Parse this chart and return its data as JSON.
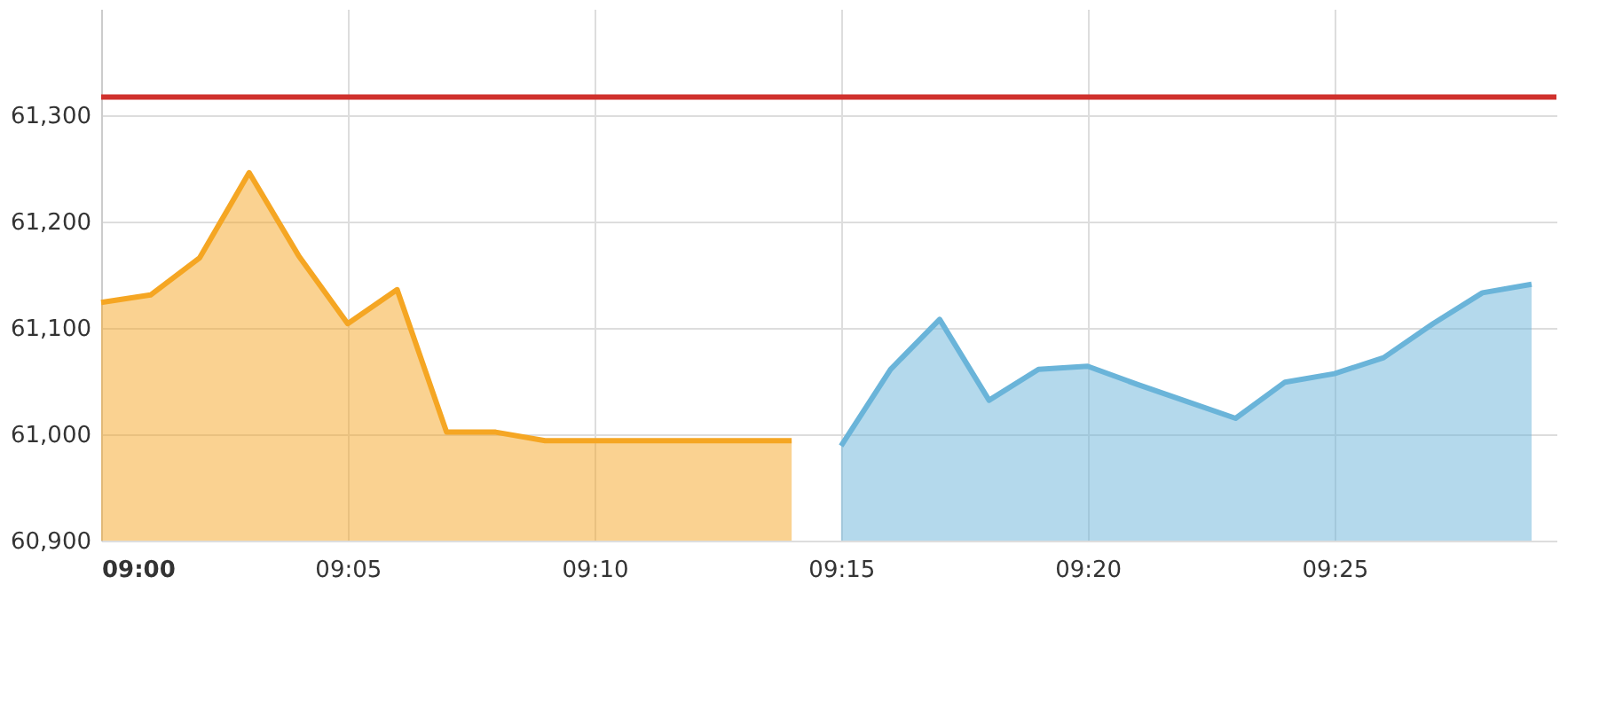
{
  "chart_data": {
    "type": "area",
    "series": [
      {
        "color": "#f5a623",
        "x": [
          9.0,
          9.0167,
          9.0333,
          9.05,
          9.0667,
          9.0833,
          9.1,
          9.1167,
          9.1333,
          9.15,
          9.1667,
          9.1833,
          9.2,
          9.2167,
          9.2333
        ],
        "values": [
          61124,
          61131,
          61166,
          61246,
          61168,
          61104,
          61136,
          61002,
          61002,
          60994,
          60994,
          60994,
          60994,
          60994,
          60994
        ]
      },
      {
        "color": "#6ab4d9",
        "x": [
          9.25,
          9.2667,
          9.2833,
          9.3,
          9.3167,
          9.3333,
          9.35,
          9.3667,
          9.3833,
          9.4,
          9.4167,
          9.4333,
          9.45,
          9.4667,
          9.4833
        ],
        "values": [
          60989,
          61061,
          61108,
          61032,
          61061,
          61064,
          61047,
          61031,
          61015,
          61049,
          61057,
          61072,
          61104,
          61133,
          61141
        ]
      }
    ],
    "xlim": [
      9.0,
      9.4917
    ],
    "xticks": [
      {
        "value": 9.0,
        "label": "09:00"
      },
      {
        "value": 9.0833,
        "label": "09:05"
      },
      {
        "value": 9.1667,
        "label": "09:10"
      },
      {
        "value": 9.25,
        "label": "09:15"
      },
      {
        "value": 9.3333,
        "label": "09:20"
      },
      {
        "value": 9.4167,
        "label": "09:25"
      }
    ],
    "ylim": [
      60900,
      61400
    ],
    "yticks": [
      {
        "value": 60900,
        "label": "60,900"
      },
      {
        "value": 61000,
        "label": "61,000"
      },
      {
        "value": 61100,
        "label": "61,100"
      },
      {
        "value": 61200,
        "label": "61,200"
      },
      {
        "value": 61300,
        "label": "61,300"
      }
    ],
    "ref_lines": [
      {
        "axis": "y",
        "value": 61317,
        "color": "#d0312d"
      }
    ],
    "grid": true
  }
}
